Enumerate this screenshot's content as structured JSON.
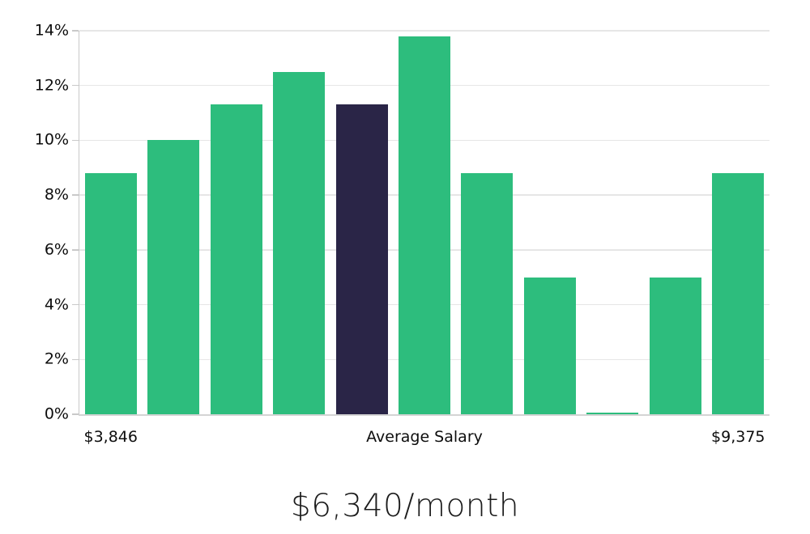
{
  "chart_data": {
    "type": "bar",
    "title": "$6,340/month",
    "title_position": "below-chart",
    "values": [
      8.8,
      10,
      11.3,
      12.5,
      11.3,
      13.8,
      8.8,
      5,
      0.05,
      5,
      8.8
    ],
    "value_unit": "%",
    "highlighted_bar_index": 4,
    "ylim": [
      0,
      14
    ],
    "yticks": [
      0,
      2,
      4,
      6,
      8,
      10,
      12,
      14
    ],
    "ytick_suffix": "%",
    "xtick_labels": [
      {
        "text": "$3,846",
        "anchor": "first-bar-center"
      },
      {
        "text": "Average Salary",
        "anchor": "plot-center"
      },
      {
        "text": "$9,375",
        "anchor": "last-bar-center"
      }
    ],
    "grid": "horizontal",
    "legend": "none",
    "colors": {
      "bar": "#2dbd7d",
      "highlighted_bar": "#2a2547",
      "gridline": "#e6e6e6",
      "axis": "#c9c9c9",
      "tick_text": "#0d0d0d",
      "title_text": "#1c1c1c",
      "background": "#ffffff"
    }
  },
  "caption": "$6,340/month"
}
